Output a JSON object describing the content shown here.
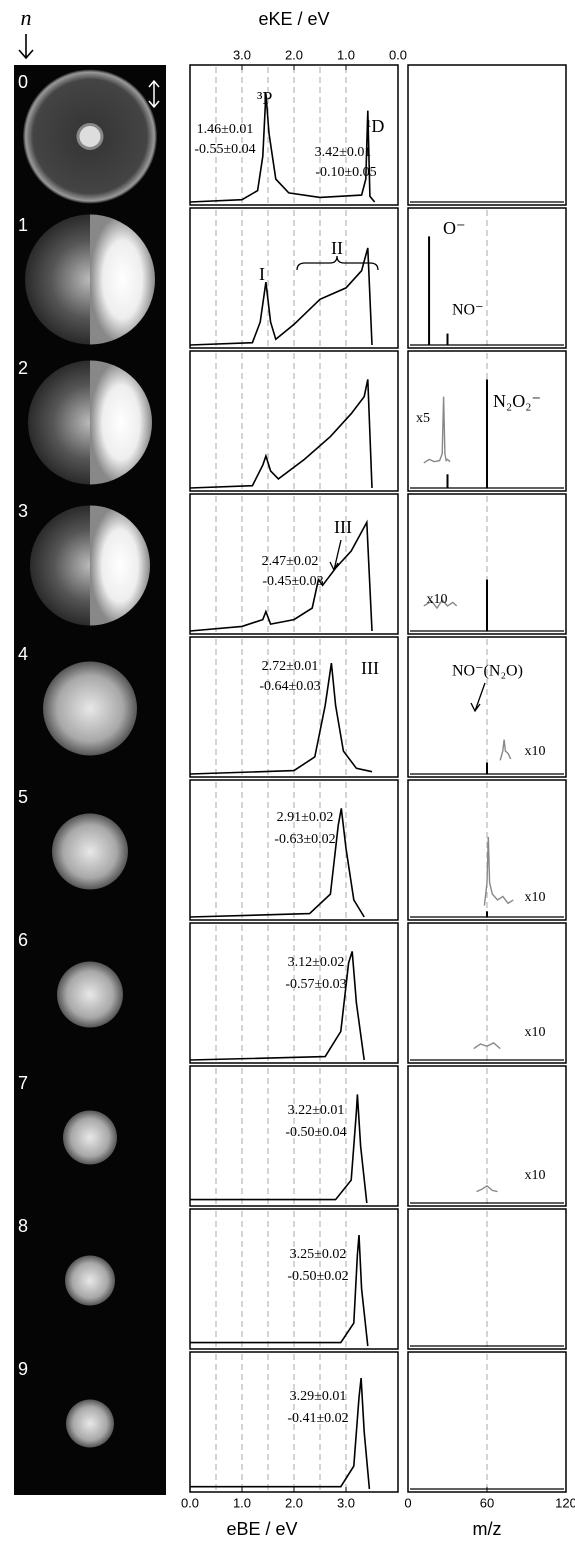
{
  "chart_data": {
    "type": "multi-panel",
    "index_label": "n",
    "panel_labels": [
      "0",
      "1",
      "2",
      "3",
      "4",
      "5",
      "6",
      "7",
      "8",
      "9"
    ],
    "ebe_axis": {
      "label": "eBE / eV",
      "xlim": [
        0,
        4
      ],
      "xticks": [
        {
          "value": 0,
          "label": "0.0"
        },
        {
          "value": 1,
          "label": "1.0"
        },
        {
          "value": 2,
          "label": "2.0"
        },
        {
          "value": 3,
          "label": "3.0"
        }
      ],
      "grid_x": [
        0.5,
        1,
        1.5,
        2,
        2.5,
        3
      ]
    },
    "eke_axis": {
      "label": "eKE / eV",
      "xlim": [
        4,
        0
      ],
      "xticks": [
        {
          "value": 3,
          "label": "3.0"
        },
        {
          "value": 2,
          "label": "2.0"
        },
        {
          "value": 1,
          "label": "1.0"
        },
        {
          "value": 0,
          "label": "0.0"
        }
      ]
    },
    "mass_axis": {
      "label": "m/z",
      "xlim": [
        0,
        120
      ],
      "xticks": [
        0,
        60,
        120
      ]
    },
    "ylim": [
      0,
      1.05
    ],
    "spectra": [
      {
        "type": "line",
        "x": [
          0,
          1.0,
          1.3,
          1.4,
          1.46,
          1.52,
          1.65,
          1.9,
          2.5,
          3.3,
          3.38,
          3.42,
          3.46,
          3.55
        ],
        "values": [
          0,
          0.02,
          0.1,
          0.4,
          0.95,
          0.6,
          0.2,
          0.08,
          0.04,
          0.06,
          0.2,
          0.8,
          0.05,
          0
        ],
        "annotations": [
          "³P",
          "1.46±0.01",
          "-0.55±0.04",
          "¹D",
          "3.42±0.01",
          "-0.10±0.05"
        ]
      },
      {
        "type": "line",
        "x": [
          0,
          1.2,
          1.35,
          1.46,
          1.55,
          1.65,
          2.0,
          2.5,
          3.0,
          3.3,
          3.42,
          3.5
        ],
        "values": [
          0,
          0.02,
          0.2,
          0.55,
          0.2,
          0.05,
          0.18,
          0.4,
          0.5,
          0.65,
          0.85,
          0
        ],
        "annotations": [
          "I",
          "II"
        ]
      },
      {
        "type": "line",
        "x": [
          0,
          1.2,
          1.4,
          1.46,
          1.55,
          1.7,
          2.2,
          2.7,
          3.1,
          3.35,
          3.42,
          3.5
        ],
        "values": [
          0,
          0.02,
          0.2,
          0.28,
          0.15,
          0.08,
          0.25,
          0.45,
          0.65,
          0.8,
          0.95,
          0
        ],
        "annotations": []
      },
      {
        "type": "line",
        "x": [
          0,
          1.0,
          1.4,
          1.46,
          1.55,
          2.0,
          2.35,
          2.47,
          2.55,
          2.8,
          3.1,
          3.4,
          3.5
        ],
        "values": [
          0,
          0.04,
          0.1,
          0.17,
          0.06,
          0.1,
          0.2,
          0.45,
          0.4,
          0.55,
          0.7,
          0.95,
          0
        ],
        "annotations": [
          "III",
          "2.47±0.02",
          "-0.45±0.03"
        ]
      },
      {
        "type": "line",
        "x": [
          0,
          2.0,
          2.4,
          2.6,
          2.72,
          2.8,
          2.95,
          3.2,
          3.5
        ],
        "values": [
          0,
          0.03,
          0.15,
          0.6,
          0.97,
          0.6,
          0.2,
          0.05,
          0.02
        ],
        "annotations": [
          "2.72±0.01",
          "-0.64±0.03",
          "III"
        ]
      },
      {
        "type": "line",
        "x": [
          0,
          2.3,
          2.7,
          2.85,
          2.91,
          3.0,
          3.15,
          3.35
        ],
        "values": [
          0,
          0.03,
          0.2,
          0.8,
          0.95,
          0.6,
          0.15,
          0
        ],
        "annotations": [
          "2.91±0.02",
          "-0.63±0.02"
        ]
      },
      {
        "type": "line",
        "x": [
          0,
          2.6,
          2.9,
          3.05,
          3.12,
          3.2,
          3.35
        ],
        "values": [
          0,
          0.03,
          0.25,
          0.85,
          0.95,
          0.5,
          0
        ],
        "annotations": [
          "3.12±0.02",
          "-0.57±0.03"
        ]
      },
      {
        "type": "line",
        "x": [
          0,
          2.8,
          3.1,
          3.2,
          3.22,
          3.28,
          3.4
        ],
        "values": [
          0.03,
          0.03,
          0.2,
          0.8,
          0.95,
          0.5,
          0
        ],
        "annotations": [
          "3.22±0.01",
          "-0.50±0.04"
        ]
      },
      {
        "type": "line",
        "x": [
          0,
          2.9,
          3.15,
          3.22,
          3.25,
          3.3,
          3.42
        ],
        "values": [
          0.03,
          0.03,
          0.2,
          0.8,
          0.97,
          0.5,
          0
        ],
        "annotations": [
          "3.25±0.02",
          "-0.50±0.02"
        ]
      },
      {
        "type": "line",
        "x": [
          0,
          2.9,
          3.15,
          3.25,
          3.29,
          3.35,
          3.45
        ],
        "values": [
          0.02,
          0.02,
          0.2,
          0.8,
          0.97,
          0.5,
          0
        ],
        "annotations": [
          "3.29±0.01",
          "-0.41±0.02"
        ]
      }
    ],
    "mass_spectra": [
      {
        "peaks": {
          "x": [],
          "values": []
        },
        "annotations": []
      },
      {
        "peaks": {
          "x": [
            16,
            30
          ],
          "values": [
            0.95,
            0.1
          ]
        },
        "annotations": [
          "O⁻",
          "NO⁻"
        ]
      },
      {
        "peaks": {
          "x": [
            30,
            60
          ],
          "values": [
            0.12,
            0.95
          ]
        },
        "trace": {
          "x": [
            12,
            16,
            20,
            24,
            26,
            27,
            28,
            29,
            30,
            32
          ],
          "values": [
            0.22,
            0.25,
            0.23,
            0.24,
            0.3,
            0.8,
            0.3,
            0.24,
            0.25,
            0.23
          ],
          "label": "x5"
        },
        "annotations": [
          "N₂O₂⁻"
        ]
      },
      {
        "peaks": {
          "x": [
            60
          ],
          "values": [
            0.45
          ]
        },
        "trace": {
          "x": [
            12,
            18,
            22,
            26,
            30,
            34,
            37
          ],
          "values": [
            0.22,
            0.26,
            0.2,
            0.27,
            0.22,
            0.25,
            0.22
          ],
          "label": "x10"
        },
        "annotations": []
      },
      {
        "peaks": {
          "x": [
            60
          ],
          "values": [
            0.1
          ]
        },
        "trace": {
          "x": [
            70,
            72,
            73,
            74,
            76,
            78
          ],
          "values": [
            0.12,
            0.2,
            0.3,
            0.2,
            0.18,
            0.13
          ],
          "label": "x10"
        },
        "annotations": [
          "NO⁻(N₂O)"
        ]
      },
      {
        "peaks": {
          "x": [
            60
          ],
          "values": [
            0.05
          ]
        },
        "trace": {
          "x": [
            58,
            60,
            61,
            62,
            64,
            68,
            72,
            76,
            80
          ],
          "values": [
            0.1,
            0.3,
            0.7,
            0.3,
            0.2,
            0.15,
            0.18,
            0.12,
            0.15
          ],
          "label": "x10"
        },
        "annotations": []
      },
      {
        "peaks": {
          "x": [],
          "values": []
        },
        "trace": {
          "x": [
            50,
            55,
            60,
            65,
            70
          ],
          "values": [
            0.1,
            0.14,
            0.12,
            0.15,
            0.1
          ],
          "label": "x10"
        },
        "annotations": []
      },
      {
        "peaks": {
          "x": [],
          "values": []
        },
        "trace": {
          "x": [
            52,
            56,
            60,
            64,
            68
          ],
          "values": [
            0.1,
            0.12,
            0.15,
            0.11,
            0.1
          ],
          "label": "x10"
        },
        "annotations": []
      },
      {
        "peaks": {
          "x": [],
          "values": []
        },
        "annotations": []
      },
      {
        "peaks": {
          "x": [],
          "values": []
        },
        "annotations": []
      }
    ]
  }
}
